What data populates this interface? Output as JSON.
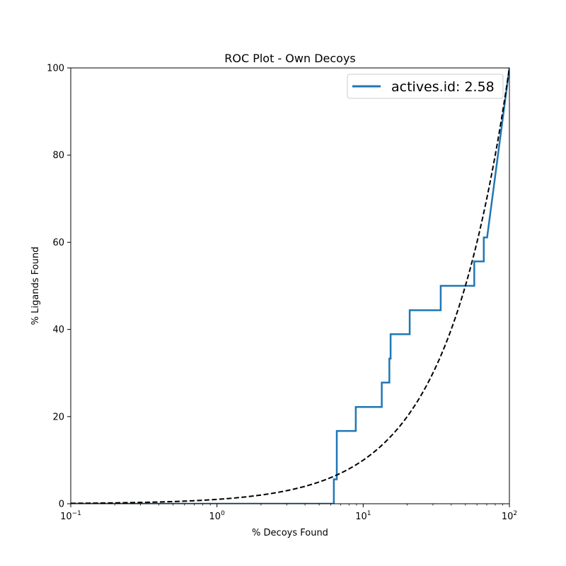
{
  "chart_data": {
    "type": "line",
    "title": "ROC Plot - Own Decoys",
    "xlabel": "% Decoys Found",
    "ylabel": "% Ligands Found",
    "xscale": "log",
    "xlim": [
      0.1,
      100
    ],
    "ylim": [
      0,
      100
    ],
    "x_ticks": [
      {
        "value": 0.1,
        "base": "10",
        "exp": "−1"
      },
      {
        "value": 1,
        "base": "10",
        "exp": "0"
      },
      {
        "value": 10,
        "base": "10",
        "exp": "1"
      },
      {
        "value": 100,
        "base": "10",
        "exp": "2"
      }
    ],
    "y_ticks": [
      0,
      20,
      40,
      60,
      80,
      100
    ],
    "grid": false,
    "legend_position": "top-right",
    "series": [
      {
        "name": "actives.id: 2.58",
        "color": "#1f77b4",
        "style": "solid",
        "points": [
          [
            0.1,
            0
          ],
          [
            6.3,
            0
          ],
          [
            6.3,
            5.6
          ],
          [
            6.6,
            5.6
          ],
          [
            6.6,
            16.7
          ],
          [
            8.9,
            16.7
          ],
          [
            8.9,
            22.2
          ],
          [
            13.4,
            22.2
          ],
          [
            13.4,
            27.8
          ],
          [
            15.1,
            27.8
          ],
          [
            15.1,
            33.3
          ],
          [
            15.4,
            33.3
          ],
          [
            15.4,
            38.9
          ],
          [
            20.8,
            38.9
          ],
          [
            20.8,
            44.4
          ],
          [
            33.9,
            44.4
          ],
          [
            33.9,
            50.0
          ],
          [
            57.5,
            50.0
          ],
          [
            57.5,
            55.6
          ],
          [
            66.8,
            55.6
          ],
          [
            66.8,
            61.1
          ],
          [
            70.4,
            61.1
          ],
          [
            100,
            100
          ]
        ]
      },
      {
        "name": "",
        "color": "#000000",
        "style": "dashed",
        "function": "y=x"
      }
    ]
  }
}
